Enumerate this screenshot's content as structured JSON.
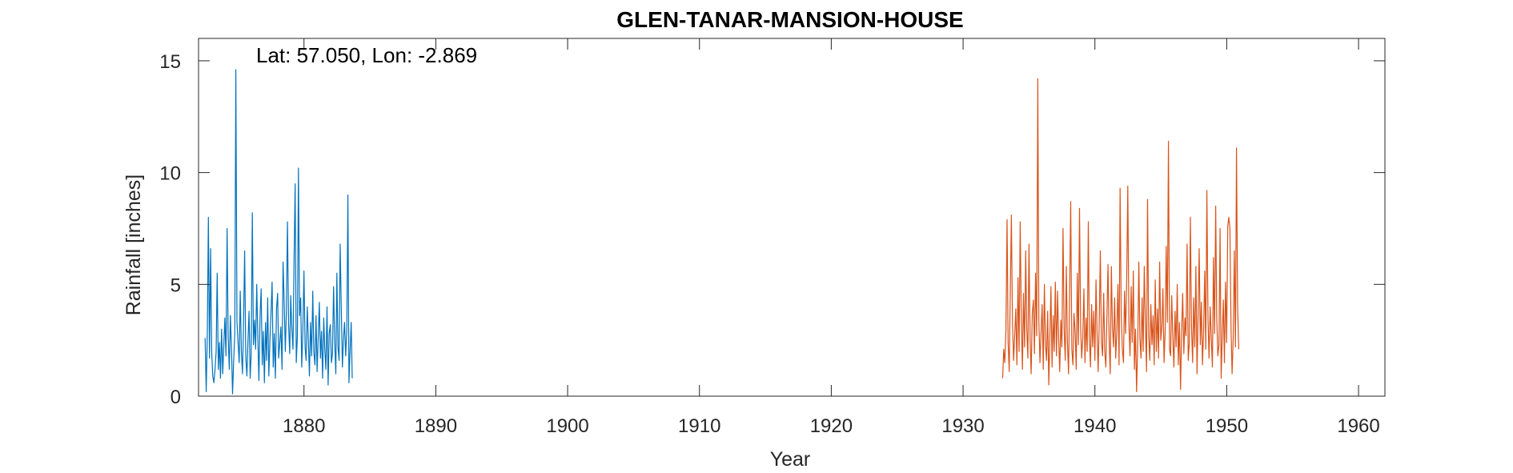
{
  "chart_data": {
    "type": "line",
    "title": "GLEN-TANAR-MANSION-HOUSE",
    "annotation": "Lat: 57.050, Lon: -2.869",
    "xlabel": "Year",
    "ylabel": "Rainfall [inches]",
    "xlim": [
      1872,
      1962
    ],
    "ylim": [
      0,
      16
    ],
    "x_ticks": [
      1880,
      1890,
      1900,
      1910,
      1920,
      1930,
      1940,
      1950,
      1960
    ],
    "y_ticks": [
      0,
      5,
      10,
      15
    ],
    "grid": false,
    "legend": "none",
    "box": true,
    "series": [
      {
        "color": "#0072BD",
        "x_start": 1872.5,
        "x_step": 0.0833,
        "values": [
          2.6,
          0.2,
          2.9,
          8.0,
          1.7,
          6.6,
          1.9,
          0.9,
          0.6,
          1.2,
          2.0,
          5.5,
          1.2,
          2.4,
          0.8,
          3.0,
          1.0,
          2.3,
          3.5,
          1.8,
          7.5,
          2.7,
          1.2,
          3.6,
          2.1,
          0.1,
          1.6,
          2.8,
          14.6,
          3.3,
          2.4,
          1.5,
          4.7,
          2.0,
          1.0,
          3.2,
          6.5,
          1.8,
          0.9,
          2.4,
          3.8,
          0.8,
          1.9,
          8.2,
          2.3,
          3.4,
          2.1,
          5.0,
          2.6,
          0.7,
          3.5,
          4.8,
          1.4,
          2.9,
          0.6,
          3.3,
          1.6,
          4.4,
          0.9,
          2.5,
          3.7,
          5.1,
          1.3,
          2.8,
          0.8,
          3.9,
          4.6,
          1.7,
          2.4,
          3.1,
          1.2,
          6.0,
          4.2,
          2.0,
          3.8,
          7.8,
          3.2,
          1.9,
          4.5,
          3.0,
          2.1,
          6.0,
          9.5,
          1.5,
          2.7,
          10.2,
          3.6,
          4.4,
          1.3,
          2.9,
          5.6,
          2.2,
          1.6,
          4.0,
          2.5,
          0.9,
          3.3,
          1.8,
          4.7,
          2.0,
          1.4,
          3.6,
          1.1,
          2.6,
          4.2,
          1.7,
          2.9,
          0.8,
          3.5,
          2.1,
          1.2,
          4.0,
          0.5,
          2.8,
          3.2,
          1.5,
          1.9,
          4.9,
          2.4,
          1.0,
          5.5,
          2.2,
          1.6,
          6.8,
          4.0,
          1.3,
          2.6,
          3.3,
          1.8,
          2.9,
          9.0,
          0.6,
          2.0,
          3.3,
          0.8
        ]
      },
      {
        "color": "#D95319",
        "x_start": 1933.0,
        "x_step": 0.0833,
        "values": [
          0.8,
          2.1,
          1.5,
          3.0,
          7.9,
          2.4,
          1.1,
          4.8,
          8.1,
          3.2,
          1.6,
          2.8,
          3.9,
          1.4,
          5.3,
          2.0,
          7.8,
          3.5,
          1.2,
          4.6,
          2.2,
          6.5,
          3.0,
          1.7,
          6.8,
          2.5,
          1.0,
          3.7,
          4.3,
          1.9,
          5.5,
          2.7,
          14.2,
          3.4,
          1.5,
          2.9,
          4.1,
          1.2,
          5.0,
          2.3,
          1.6,
          3.8,
          0.5,
          2.5,
          4.9,
          1.3,
          3.6,
          2.0,
          5.1,
          1.8,
          4.7,
          2.6,
          1.1,
          3.4,
          2.2,
          7.5,
          3.0,
          1.6,
          5.8,
          2.4,
          1.0,
          4.4,
          8.7,
          2.1,
          1.4,
          3.7,
          2.9,
          1.2,
          5.5,
          2.3,
          8.4,
          3.1,
          1.7,
          2.6,
          4.8,
          1.5,
          3.5,
          2.0,
          7.8,
          2.7,
          1.3,
          4.1,
          2.2,
          3.8,
          1.6,
          5.2,
          2.9,
          1.1,
          3.4,
          6.5,
          2.4,
          1.8,
          4.6,
          2.0,
          1.3,
          3.7,
          5.9,
          2.5,
          1.0,
          5.8,
          3.1,
          2.2,
          4.4,
          1.7,
          2.9,
          5.0,
          1.4,
          9.3,
          3.6,
          2.1,
          1.5,
          4.7,
          2.8,
          5.3,
          9.4,
          3.2,
          1.8,
          4.9,
          2.4,
          5.6,
          1.2,
          3.0,
          0.2,
          2.3,
          6.0,
          2.6,
          1.7,
          4.4,
          2.0,
          5.8,
          3.3,
          1.1,
          8.8,
          2.7,
          1.6,
          4.1,
          2.3,
          3.6,
          1.4,
          5.2,
          2.0,
          3.9,
          1.7,
          6.0,
          2.5,
          3.1,
          4.8,
          1.5,
          2.9,
          6.7,
          3.3,
          11.4,
          2.1,
          1.8,
          4.5,
          2.6,
          1.3,
          3.8,
          2.2,
          5.0,
          1.4,
          3.3,
          0.3,
          2.8,
          4.6,
          1.9,
          3.5,
          2.7,
          6.8,
          1.6,
          2.4,
          8.0,
          3.1,
          1.5,
          4.4,
          2.2,
          5.8,
          1.0,
          3.6,
          6.6,
          2.3,
          4.2,
          1.4,
          2.9,
          5.6,
          2.1,
          9.2,
          3.4,
          1.7,
          4.0,
          2.6,
          1.3,
          6.2,
          2.8,
          8.5,
          3.5,
          1.8,
          2.3,
          7.5,
          0.8,
          2.7,
          4.3,
          1.5,
          5.1,
          2.4,
          7.6,
          8.0,
          7.5,
          3.0,
          1.0,
          2.6,
          6.5,
          2.2,
          11.1,
          4.0,
          2.1
        ]
      }
    ]
  }
}
